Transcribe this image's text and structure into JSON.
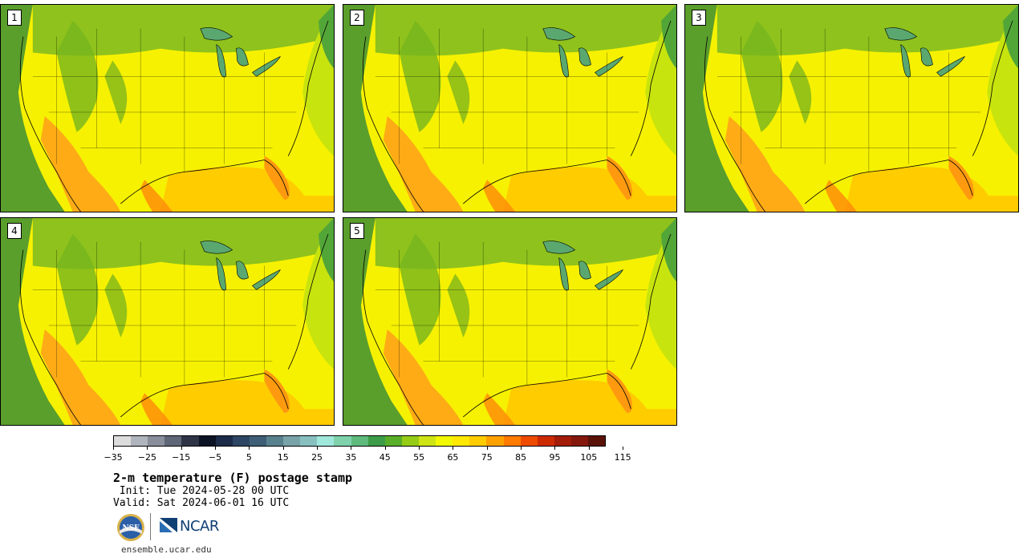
{
  "panels": [
    {
      "label": "1"
    },
    {
      "label": "2"
    },
    {
      "label": "3"
    },
    {
      "label": "4"
    },
    {
      "label": "5"
    }
  ],
  "colorbar": {
    "colors": [
      "#dcdcdc",
      "#b0b4bd",
      "#8a8e9b",
      "#5f6676",
      "#2e3446",
      "#0b1324",
      "#1c2b47",
      "#2d4663",
      "#3e5f75",
      "#58818e",
      "#78a3a8",
      "#88c0c0",
      "#a0e8dc",
      "#80d2ac",
      "#5fba7c",
      "#3c9c48",
      "#58ae28",
      "#94cc16",
      "#cee414",
      "#f2f800",
      "#ffe800",
      "#ffcc00",
      "#ffa200",
      "#ff7a00",
      "#ee4a00",
      "#cc2a00",
      "#a21c08",
      "#84180c",
      "#5a1208"
    ],
    "tick_labels": [
      "−35",
      "−25",
      "−15",
      "−5",
      "5",
      "15",
      "25",
      "35",
      "45",
      "55",
      "65",
      "75",
      "85",
      "95",
      "105",
      "115"
    ]
  },
  "title": "2-m temperature (F) postage stamp",
  "init": " Init: Tue 2024-05-28 00 UTC",
  "valid": "Valid: Sat 2024-06-01 16 UTC",
  "logos": {
    "ncar_text": "NCAR",
    "nsf_text": "NSF"
  },
  "site": "ensemble.ucar.edu"
}
